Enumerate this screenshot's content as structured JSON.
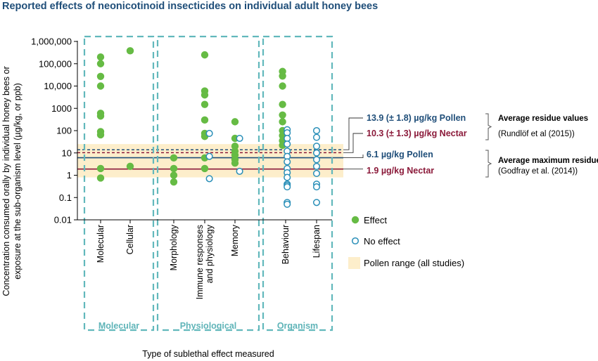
{
  "title": "Reported effects of neonicotinoid insecticides on individual adult honey bees",
  "colors": {
    "effect": "#66bb44",
    "no_effect": "#2a8fb8",
    "pollen_range": "#fdeecb",
    "pollen_line": "#1f4e79",
    "nectar_line": "#8b1a3a",
    "group_border": "#62b8bc",
    "title": "#1f4e79"
  },
  "chart_data": {
    "type": "scatter",
    "title": "Reported effects of neonicotinoid insecticides on individual adult honey bees",
    "ylabel_lines": [
      "Concentration consumed orally by individual honey bees or",
      "exposure at the sub-organism level (µg/kg, or ppb)"
    ],
    "xlabel": "Type of sublethal effect measured",
    "y_scale": "log",
    "ylim": [
      0.01,
      1000000
    ],
    "y_ticks": [
      0.01,
      0.1,
      1,
      10,
      100,
      1000,
      10000,
      100000,
      1000000
    ],
    "y_tick_labels": [
      "0.01",
      "0.1",
      "1",
      "10",
      "100",
      "1000",
      "10,000",
      "100,000",
      "1,000,000"
    ],
    "categories": [
      "Molecular",
      "Cellular",
      "Morphology",
      "Immune responses and physiology",
      "Memory",
      "Behaviour",
      "Lifespan"
    ],
    "category_label_lines": [
      [
        "Molecular"
      ],
      [
        "Cellular"
      ],
      [
        "Morphology"
      ],
      [
        "Immune responses",
        "and physiology"
      ],
      [
        "Memory"
      ],
      [
        "Behaviour"
      ],
      [
        "Lifespan"
      ]
    ],
    "groups": [
      {
        "label": "Molecular",
        "categories": [
          "Molecular",
          "Cellular"
        ]
      },
      {
        "label": "Physiological",
        "categories": [
          "Morphology",
          "Immune responses and physiology",
          "Memory"
        ]
      },
      {
        "label": "Organism",
        "categories": [
          "Behaviour",
          "Lifespan"
        ]
      }
    ],
    "series": [
      {
        "name": "Effect",
        "marker": "filled",
        "points": [
          {
            "category": "Molecular",
            "offset": 0,
            "y": [
              200000,
              100000,
              27000,
              10000,
              600,
              450,
              90,
              65,
              2,
              0.75
            ]
          },
          {
            "category": "Cellular",
            "offset": 0,
            "y": [
              380000,
              2.5
            ]
          },
          {
            "category": "Morphology",
            "offset": 0,
            "y": [
              6,
              2,
              1,
              0.5
            ]
          },
          {
            "category": "Immune responses and physiology",
            "offset": 0,
            "y": [
              250000,
              6000,
              4000,
              1500,
              300,
              75,
              55,
              6,
              2
            ]
          },
          {
            "category": "Memory",
            "offset": 0,
            "y": [
              250,
              45,
              20,
              12,
              8,
              5,
              3.5
            ]
          },
          {
            "category": "Behaviour",
            "offset": -0.2,
            "y": [
              45000,
              28000,
              10000,
              1500,
              500,
              250,
              100,
              60,
              35,
              22
            ]
          }
        ]
      },
      {
        "name": "No effect",
        "marker": "open",
        "points": [
          {
            "category": "Immune responses and physiology",
            "offset": 0.3,
            "y": [
              75,
              7,
              0.7
            ]
          },
          {
            "category": "Memory",
            "offset": 0.3,
            "y": [
              45,
              1.5
            ]
          },
          {
            "category": "Behaviour",
            "offset": 0.1,
            "y": [
              110,
              80,
              45,
              25,
              12,
              7,
              4,
              2,
              1.3,
              0.8,
              0.4,
              0.35,
              0.3,
              0.06,
              0.05
            ]
          },
          {
            "category": "Lifespan",
            "offset": 0,
            "y": [
              100,
              50,
              20,
              10,
              5,
              2.5,
              1.2,
              0.4,
              0.3,
              0.06
            ]
          }
        ]
      }
    ],
    "pollen_range": {
      "name": "Pollen range (all studies)",
      "y": [
        0.8,
        25
      ]
    },
    "reference_lines": [
      {
        "value": 13.9,
        "label": "13.9 (± 1.8) µg/kg Pollen",
        "color": "#1f4e79",
        "style": "dashed"
      },
      {
        "value": 10.3,
        "label": "10.3 (± 1.3) µg/kg Nectar",
        "color": "#8b1a3a",
        "style": "dashed"
      },
      {
        "value": 6.1,
        "label": "6.1 µg/kg Pollen",
        "color": "#1f4e79",
        "style": "solid"
      },
      {
        "value": 1.9,
        "label": "1.9 µg/kg Nectar",
        "color": "#8b1a3a",
        "style": "solid"
      }
    ],
    "annotations": [
      {
        "bold": "Average residue values",
        "sub": "(Rundlöf et al (2015))"
      },
      {
        "bold": "Average maximum residue values",
        "sub": "(Godfray et al. (2014))"
      }
    ],
    "legend": {
      "placement": "right",
      "entries": [
        "Effect",
        "No effect",
        "Pollen range (all studies)"
      ]
    }
  }
}
